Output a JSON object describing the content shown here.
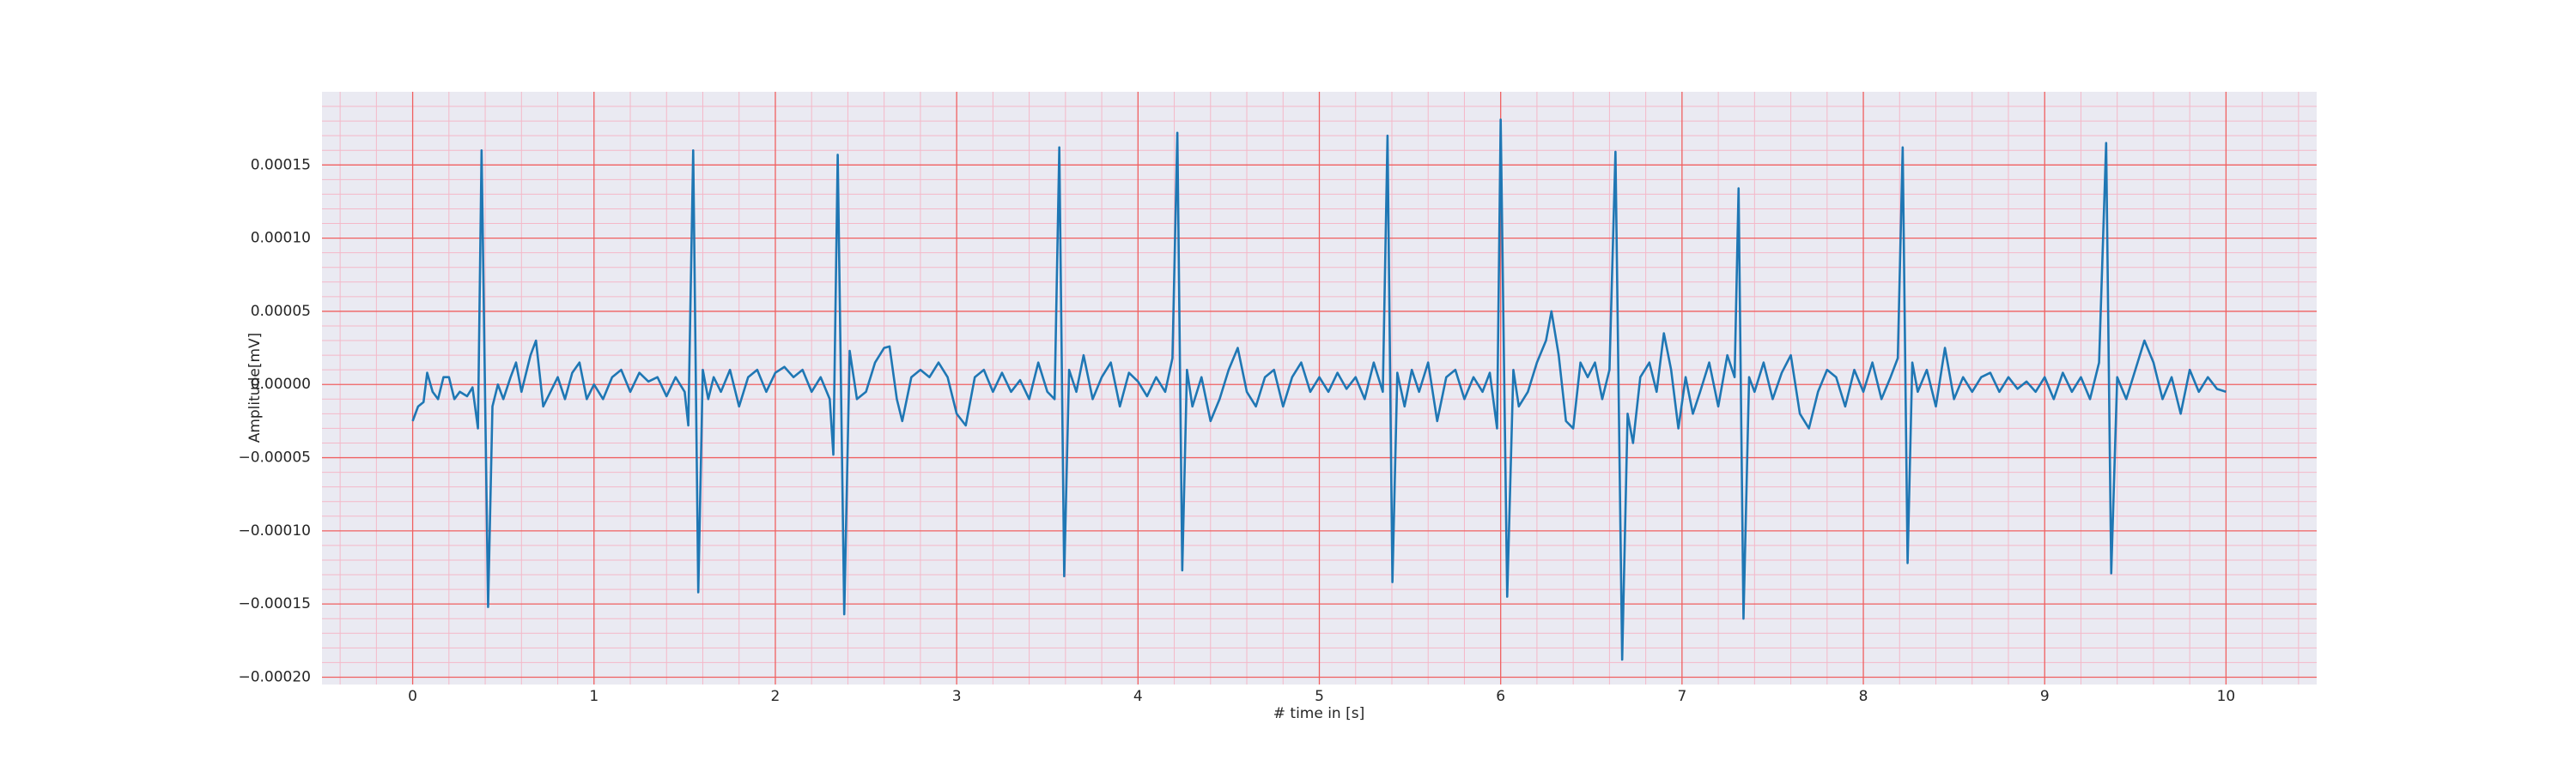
{
  "chart_data": {
    "type": "line",
    "x_label": "# time in [s]",
    "y_label": "Amplitude[mV]",
    "color": "#1f77b4",
    "grid": true,
    "minor_grid": true,
    "xlim": [
      -0.5,
      10.5
    ],
    "ylim": [
      -0.000205,
      0.0002
    ],
    "xticks": [
      0,
      1,
      2,
      3,
      4,
      5,
      6,
      7,
      8,
      9,
      10
    ],
    "yticks": [
      {
        "value": -0.0002,
        "label": "−0.00020"
      },
      {
        "value": -0.00015,
        "label": "−0.00015"
      },
      {
        "value": -0.0001,
        "label": "−0.00010"
      },
      {
        "value": -5e-05,
        "label": "−0.00005"
      },
      {
        "value": 0,
        "label": "0.00000"
      },
      5e-05,
      {
        "value": 0.0001,
        "label": "0.00010"
      },
      0.00015
    ],
    "x": [
      0.0,
      0.03,
      0.06,
      0.08,
      0.11,
      0.14,
      0.17,
      0.2,
      0.23,
      0.26,
      0.3,
      0.33,
      0.36,
      0.38,
      0.416,
      0.44,
      0.47,
      0.5,
      0.54,
      0.57,
      0.6,
      0.62,
      0.65,
      0.68,
      0.72,
      0.76,
      0.8,
      0.84,
      0.88,
      0.92,
      0.96,
      1.0,
      1.05,
      1.1,
      1.15,
      1.2,
      1.25,
      1.3,
      1.35,
      1.4,
      1.45,
      1.5,
      1.52,
      1.547,
      1.575,
      1.6,
      1.63,
      1.66,
      1.7,
      1.75,
      1.8,
      1.85,
      1.9,
      1.95,
      2.0,
      2.05,
      2.1,
      2.15,
      2.2,
      2.25,
      2.3,
      2.32,
      2.344,
      2.38,
      2.41,
      2.45,
      2.5,
      2.55,
      2.6,
      2.63,
      2.67,
      2.7,
      2.75,
      2.8,
      2.85,
      2.9,
      2.95,
      3.0,
      3.05,
      3.1,
      3.15,
      3.2,
      3.25,
      3.3,
      3.35,
      3.4,
      3.45,
      3.5,
      3.54,
      3.566,
      3.593,
      3.62,
      3.66,
      3.7,
      3.75,
      3.8,
      3.85,
      3.9,
      3.95,
      4.0,
      4.05,
      4.1,
      4.15,
      4.19,
      4.217,
      4.244,
      4.27,
      4.3,
      4.35,
      4.4,
      4.45,
      4.5,
      4.55,
      4.6,
      4.65,
      4.7,
      4.75,
      4.8,
      4.85,
      4.9,
      4.95,
      5.0,
      5.05,
      5.1,
      5.15,
      5.2,
      5.25,
      5.3,
      5.35,
      5.376,
      5.403,
      5.43,
      5.47,
      5.51,
      5.55,
      5.6,
      5.65,
      5.7,
      5.75,
      5.8,
      5.85,
      5.9,
      5.94,
      5.98,
      6.0,
      6.036,
      6.07,
      6.1,
      6.15,
      6.2,
      6.25,
      6.28,
      6.32,
      6.36,
      6.4,
      6.44,
      6.48,
      6.52,
      6.56,
      6.6,
      6.633,
      6.67,
      6.7,
      6.73,
      6.77,
      6.82,
      6.86,
      6.9,
      6.94,
      6.98,
      7.02,
      7.06,
      7.1,
      7.15,
      7.2,
      7.25,
      7.29,
      7.312,
      7.339,
      7.37,
      7.4,
      7.45,
      7.5,
      7.55,
      7.6,
      7.65,
      7.7,
      7.75,
      7.8,
      7.85,
      7.9,
      7.95,
      8.0,
      8.05,
      8.1,
      8.15,
      8.19,
      8.217,
      8.244,
      8.27,
      8.3,
      8.35,
      8.4,
      8.45,
      8.5,
      8.55,
      8.6,
      8.65,
      8.7,
      8.75,
      8.8,
      8.85,
      8.9,
      8.95,
      9.0,
      9.05,
      9.1,
      9.15,
      9.2,
      9.25,
      9.3,
      9.339,
      9.367,
      9.4,
      9.45,
      9.5,
      9.55,
      9.6,
      9.65,
      9.7,
      9.75,
      9.8,
      9.85,
      9.9,
      9.95,
      10.0
    ],
    "values": [
      -2.5e-05,
      -1.5e-05,
      -1.2e-05,
      8e-06,
      -5e-06,
      -1e-05,
      5e-06,
      5e-06,
      -1e-05,
      -5e-06,
      -8e-06,
      -2e-06,
      -3e-05,
      0.00016,
      -0.000152,
      -1.5e-05,
      0,
      -1e-05,
      5e-06,
      1.5e-05,
      -5e-06,
      5e-06,
      2e-05,
      3e-05,
      -1.5e-05,
      -5e-06,
      5e-06,
      -1e-05,
      8e-06,
      1.5e-05,
      -1e-05,
      0,
      -1e-05,
      5e-06,
      1e-05,
      -5e-06,
      8e-06,
      2e-06,
      5e-06,
      -8e-06,
      5e-06,
      -5e-06,
      -2.8e-05,
      0.00016,
      -0.000142,
      1e-05,
      -1e-05,
      5e-06,
      -5e-06,
      1e-05,
      -1.5e-05,
      5e-06,
      1e-05,
      -5e-06,
      8e-06,
      1.2e-05,
      5e-06,
      1e-05,
      -5e-06,
      5e-06,
      -1e-05,
      -4.8e-05,
      0.000157,
      -0.000157,
      2.3e-05,
      -1e-05,
      -5e-06,
      1.5e-05,
      2.5e-05,
      2.6e-05,
      -1e-05,
      -2.5e-05,
      5e-06,
      1e-05,
      5e-06,
      1.5e-05,
      5e-06,
      -2e-05,
      -2.8e-05,
      5e-06,
      1e-05,
      -5e-06,
      8e-06,
      -5e-06,
      3e-06,
      -1e-05,
      1.5e-05,
      -5e-06,
      -1e-05,
      0.000162,
      -0.000131,
      1e-05,
      -5e-06,
      2e-05,
      -1e-05,
      5e-06,
      1.5e-05,
      -1.5e-05,
      8e-06,
      2e-06,
      -8e-06,
      5e-06,
      -5e-06,
      1.8e-05,
      0.000172,
      -0.000127,
      1e-05,
      -1.5e-05,
      5e-06,
      -2.5e-05,
      -1e-05,
      1e-05,
      2.5e-05,
      -5e-06,
      -1.5e-05,
      5e-06,
      1e-05,
      -1.5e-05,
      5e-06,
      1.5e-05,
      -5e-06,
      5e-06,
      -5e-06,
      8e-06,
      -3e-06,
      5e-06,
      -1e-05,
      1.5e-05,
      -5e-06,
      0.00017,
      -0.000135,
      8e-06,
      -1.5e-05,
      1e-05,
      -5e-06,
      1.5e-05,
      -2.5e-05,
      5e-06,
      1e-05,
      -1e-05,
      5e-06,
      -5e-06,
      8e-06,
      -3e-05,
      0.000181,
      -0.000145,
      1e-05,
      -1.5e-05,
      -5e-06,
      1.5e-05,
      3e-05,
      5e-05,
      2e-05,
      -2.5e-05,
      -3e-05,
      1.5e-05,
      5e-06,
      1.5e-05,
      -1e-05,
      1e-05,
      0.000159,
      -0.000188,
      -2e-05,
      -4e-05,
      5e-06,
      1.5e-05,
      -5e-06,
      3.5e-05,
      1e-05,
      -3e-05,
      5e-06,
      -2e-05,
      -5e-06,
      1.5e-05,
      -1.5e-05,
      2e-05,
      5e-06,
      0.000134,
      -0.00016,
      5e-06,
      -5e-06,
      1.5e-05,
      -1e-05,
      8e-06,
      2e-05,
      -2e-05,
      -3e-05,
      -5e-06,
      1e-05,
      5e-06,
      -1.5e-05,
      1e-05,
      -5e-06,
      1.5e-05,
      -1e-05,
      5e-06,
      1.8e-05,
      0.000162,
      -0.000122,
      1.5e-05,
      -5e-06,
      1e-05,
      -1.5e-05,
      2.5e-05,
      -1e-05,
      5e-06,
      -5e-06,
      5e-06,
      8e-06,
      -5e-06,
      5e-06,
      -3e-06,
      2e-06,
      -5e-06,
      5e-06,
      -1e-05,
      8e-06,
      -5e-06,
      5e-06,
      -1e-05,
      1.5e-05,
      0.000165,
      -0.000129,
      5e-06,
      -1e-05,
      1e-05,
      3e-05,
      1.5e-05,
      -1e-05,
      5e-06,
      -2e-05,
      1e-05,
      -5e-06,
      5e-06,
      -3e-06,
      -5e-06
    ]
  }
}
